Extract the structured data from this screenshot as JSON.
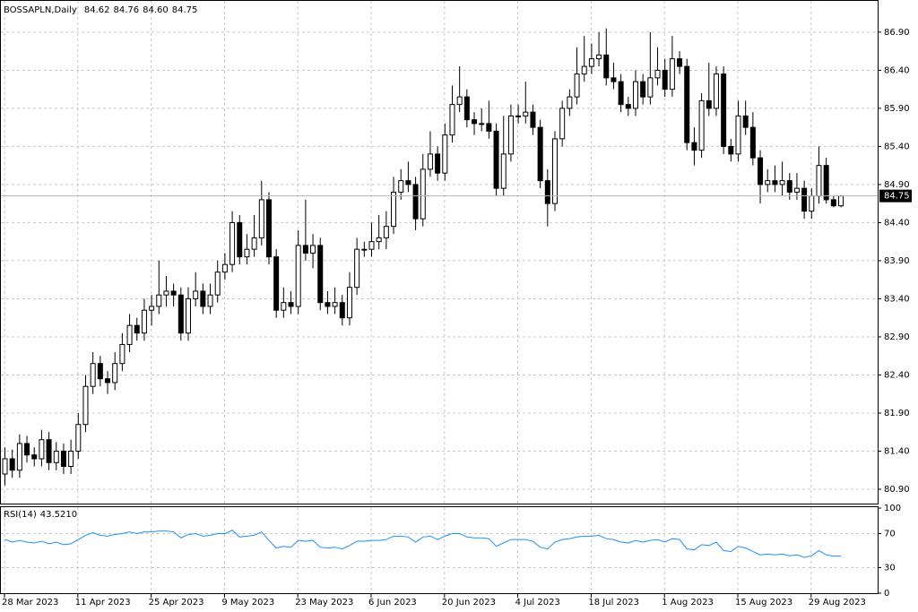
{
  "chart_data": {
    "type": "candlestick",
    "header": {
      "symbol": "BOSSAPLN,Daily",
      "ohlc": [
        "84.62",
        "84.76",
        "84.60",
        "84.75"
      ]
    },
    "ylim": [
      80.7,
      87.31
    ],
    "yticks": [
      {
        "value": 80.9,
        "label": "80.90"
      },
      {
        "value": 81.4,
        "label": "81.40"
      },
      {
        "value": 81.9,
        "label": "81.90"
      },
      {
        "value": 82.4,
        "label": "82.40"
      },
      {
        "value": 82.9,
        "label": "82.90"
      },
      {
        "value": 83.4,
        "label": "83.40"
      },
      {
        "value": 83.9,
        "label": "83.90"
      },
      {
        "value": 84.4,
        "label": "84.40"
      },
      {
        "value": 84.9,
        "label": "84.90"
      },
      {
        "value": 85.4,
        "label": "85.40"
      },
      {
        "value": 85.9,
        "label": "85.90"
      },
      {
        "value": 86.4,
        "label": "86.40"
      },
      {
        "value": 86.9,
        "label": "86.90"
      }
    ],
    "xticks": [
      {
        "value": 0,
        "label": "28 Mar 2023"
      },
      {
        "value": 10,
        "label": "11 Apr 2023"
      },
      {
        "value": 20,
        "label": "25 Apr 2023"
      },
      {
        "value": 30,
        "label": "9 May 2023"
      },
      {
        "value": 40,
        "label": "23 May 2023"
      },
      {
        "value": 50,
        "label": "6 Jun 2023"
      },
      {
        "value": 60,
        "label": "20 Jun 2023"
      },
      {
        "value": 70,
        "label": "4 Jul 2023"
      },
      {
        "value": 80,
        "label": "18 Jul 2023"
      },
      {
        "value": 90,
        "label": "1 Aug 2023"
      },
      {
        "value": 100,
        "label": "15 Aug 2023"
      },
      {
        "value": 110,
        "label": "29 Aug 2023"
      }
    ],
    "grid": true,
    "up_color": "#ffffff",
    "down_color": "#000000",
    "candles": [
      [
        81.1,
        81.45,
        80.95,
        81.3
      ],
      [
        81.3,
        81.42,
        81.05,
        81.15
      ],
      [
        81.15,
        81.62,
        81.05,
        81.5
      ],
      [
        81.5,
        81.6,
        81.25,
        81.35
      ],
      [
        81.35,
        81.45,
        81.2,
        81.3
      ],
      [
        81.3,
        81.68,
        81.2,
        81.55
      ],
      [
        81.55,
        81.65,
        81.15,
        81.25
      ],
      [
        81.25,
        81.52,
        81.15,
        81.4
      ],
      [
        81.4,
        81.5,
        81.1,
        81.2
      ],
      [
        81.2,
        81.55,
        81.1,
        81.4
      ],
      [
        81.4,
        81.9,
        81.3,
        81.75
      ],
      [
        81.75,
        82.4,
        81.65,
        82.25
      ],
      [
        82.25,
        82.7,
        82.15,
        82.55
      ],
      [
        82.55,
        82.65,
        82.25,
        82.35
      ],
      [
        82.35,
        82.45,
        82.15,
        82.3
      ],
      [
        82.3,
        82.7,
        82.2,
        82.55
      ],
      [
        82.55,
        82.95,
        82.45,
        82.8
      ],
      [
        82.8,
        83.2,
        82.7,
        83.05
      ],
      [
        83.05,
        83.15,
        82.85,
        82.95
      ],
      [
        82.95,
        83.4,
        82.85,
        83.25
      ],
      [
        83.25,
        83.45,
        83.05,
        83.3
      ],
      [
        83.3,
        83.9,
        83.2,
        83.45
      ],
      [
        83.45,
        83.7,
        83.3,
        83.5
      ],
      [
        83.5,
        83.6,
        83.3,
        83.45
      ],
      [
        83.45,
        83.55,
        82.85,
        82.95
      ],
      [
        82.95,
        83.55,
        82.85,
        83.4
      ],
      [
        83.4,
        83.75,
        83.3,
        83.5
      ],
      [
        83.5,
        83.6,
        83.2,
        83.3
      ],
      [
        83.3,
        83.6,
        83.2,
        83.45
      ],
      [
        83.45,
        83.9,
        83.35,
        83.75
      ],
      [
        83.75,
        84.0,
        83.65,
        83.85
      ],
      [
        83.85,
        84.55,
        83.75,
        84.4
      ],
      [
        84.4,
        84.5,
        83.85,
        83.95
      ],
      [
        83.95,
        84.25,
        83.85,
        84.05
      ],
      [
        84.05,
        84.5,
        83.95,
        84.2
      ],
      [
        84.2,
        84.95,
        84.1,
        84.7
      ],
      [
        84.7,
        84.8,
        83.85,
        83.95
      ],
      [
        83.95,
        84.05,
        83.15,
        83.25
      ],
      [
        83.25,
        83.55,
        83.15,
        83.35
      ],
      [
        83.35,
        83.5,
        83.2,
        83.3
      ],
      [
        83.3,
        84.3,
        83.2,
        84.1
      ],
      [
        84.1,
        84.7,
        83.9,
        84.0
      ],
      [
        84.0,
        84.25,
        83.8,
        84.1
      ],
      [
        84.1,
        84.2,
        83.25,
        83.35
      ],
      [
        83.35,
        83.5,
        83.2,
        83.3
      ],
      [
        83.3,
        83.55,
        83.2,
        83.35
      ],
      [
        83.35,
        83.45,
        83.05,
        83.15
      ],
      [
        83.15,
        83.75,
        83.05,
        83.55
      ],
      [
        83.55,
        84.2,
        83.45,
        84.05
      ],
      [
        84.05,
        84.15,
        83.95,
        84.05
      ],
      [
        84.05,
        84.4,
        83.95,
        84.15
      ],
      [
        84.15,
        84.5,
        84.05,
        84.2
      ],
      [
        84.2,
        84.55,
        84.05,
        84.35
      ],
      [
        84.35,
        85.0,
        84.25,
        84.8
      ],
      [
        84.8,
        85.1,
        84.7,
        84.95
      ],
      [
        84.95,
        85.2,
        84.8,
        84.9
      ],
      [
        84.9,
        85.0,
        84.3,
        84.45
      ],
      [
        84.45,
        85.3,
        84.35,
        85.1
      ],
      [
        85.1,
        85.6,
        85.0,
        85.3
      ],
      [
        85.3,
        85.4,
        84.95,
        85.05
      ],
      [
        85.05,
        85.7,
        84.95,
        85.55
      ],
      [
        85.55,
        86.2,
        85.45,
        85.95
      ],
      [
        85.95,
        86.45,
        85.85,
        86.05
      ],
      [
        86.05,
        86.15,
        85.65,
        85.75
      ],
      [
        85.75,
        85.85,
        85.55,
        85.7
      ],
      [
        85.7,
        85.9,
        85.6,
        85.7
      ],
      [
        85.7,
        86.0,
        85.5,
        85.6
      ],
      [
        85.6,
        85.7,
        84.75,
        84.85
      ],
      [
        84.85,
        85.8,
        84.75,
        85.3
      ],
      [
        85.3,
        85.95,
        85.2,
        85.8
      ],
      [
        85.8,
        85.95,
        85.7,
        85.8
      ],
      [
        85.8,
        86.25,
        85.7,
        85.85
      ],
      [
        85.85,
        85.95,
        85.55,
        85.65
      ],
      [
        85.65,
        85.75,
        84.85,
        84.95
      ],
      [
        84.95,
        85.1,
        84.35,
        84.65
      ],
      [
        84.65,
        85.6,
        84.55,
        85.5
      ],
      [
        85.5,
        86.0,
        85.4,
        85.9
      ],
      [
        85.9,
        86.15,
        85.8,
        86.05
      ],
      [
        86.05,
        86.7,
        85.95,
        86.35
      ],
      [
        86.35,
        86.85,
        86.25,
        86.45
      ],
      [
        86.45,
        86.75,
        86.35,
        86.55
      ],
      [
        86.55,
        86.9,
        86.45,
        86.6
      ],
      [
        86.6,
        86.95,
        86.2,
        86.3
      ],
      [
        86.3,
        86.5,
        86.15,
        86.25
      ],
      [
        86.25,
        86.35,
        85.85,
        85.95
      ],
      [
        85.95,
        86.05,
        85.8,
        85.9
      ],
      [
        85.9,
        86.4,
        85.8,
        86.25
      ],
      [
        86.25,
        86.35,
        85.95,
        86.05
      ],
      [
        86.05,
        86.9,
        85.95,
        86.3
      ],
      [
        86.3,
        86.7,
        86.2,
        86.4
      ],
      [
        86.4,
        86.55,
        86.05,
        86.15
      ],
      [
        86.15,
        86.85,
        86.05,
        86.55
      ],
      [
        86.55,
        86.65,
        86.35,
        86.45
      ],
      [
        86.45,
        86.55,
        85.35,
        85.45
      ],
      [
        85.45,
        85.65,
        85.15,
        85.35
      ],
      [
        85.35,
        86.1,
        85.25,
        86.0
      ],
      [
        86.0,
        86.5,
        85.8,
        85.9
      ],
      [
        85.9,
        86.45,
        85.8,
        86.35
      ],
      [
        86.35,
        86.45,
        85.3,
        85.4
      ],
      [
        85.4,
        85.5,
        85.2,
        85.3
      ],
      [
        85.3,
        86.0,
        85.2,
        85.8
      ],
      [
        85.8,
        86.0,
        85.55,
        85.65
      ],
      [
        85.65,
        85.85,
        85.15,
        85.25
      ],
      [
        85.25,
        85.35,
        84.65,
        84.9
      ],
      [
        84.9,
        85.1,
        84.8,
        84.95
      ],
      [
        84.95,
        85.15,
        84.8,
        84.9
      ],
      [
        84.9,
        85.2,
        84.75,
        84.95
      ],
      [
        84.95,
        85.05,
        84.7,
        84.8
      ],
      [
        84.8,
        85.05,
        84.7,
        84.85
      ],
      [
        84.85,
        84.95,
        84.45,
        84.55
      ],
      [
        84.55,
        84.85,
        84.45,
        84.75
      ],
      [
        84.75,
        85.4,
        84.65,
        85.15
      ],
      [
        85.15,
        85.25,
        84.65,
        84.7
      ],
      [
        84.7,
        84.75,
        84.6,
        84.62
      ],
      [
        84.62,
        84.76,
        84.6,
        84.75
      ]
    ],
    "rsi": {
      "name": "RSI(14)",
      "color": "#1e90ff",
      "value_label": "43.5210",
      "ylim": [
        0,
        100
      ],
      "yticks": [
        0,
        30,
        70,
        100
      ],
      "values": [
        63,
        60,
        62,
        60,
        59,
        61,
        58,
        60,
        57,
        58,
        63,
        68,
        71,
        68,
        67,
        69,
        70,
        72,
        70,
        72,
        72,
        73,
        73,
        72,
        65,
        69,
        70,
        67,
        68,
        70,
        70,
        74,
        66,
        67,
        68,
        72,
        62,
        53,
        55,
        54,
        62,
        61,
        62,
        54,
        53,
        54,
        52,
        56,
        61,
        61,
        62,
        62,
        63,
        67,
        67,
        66,
        60,
        66,
        67,
        63,
        67,
        70,
        70,
        66,
        65,
        65,
        64,
        55,
        59,
        63,
        63,
        63,
        61,
        54,
        52,
        60,
        63,
        64,
        66,
        67,
        67,
        68,
        64,
        63,
        60,
        59,
        62,
        60,
        62,
        63,
        60,
        64,
        63,
        52,
        51,
        57,
        56,
        60,
        50,
        49,
        55,
        53,
        49,
        45,
        46,
        45,
        46,
        44,
        45,
        42,
        44,
        50,
        45,
        43.6,
        43.521
      ]
    }
  }
}
